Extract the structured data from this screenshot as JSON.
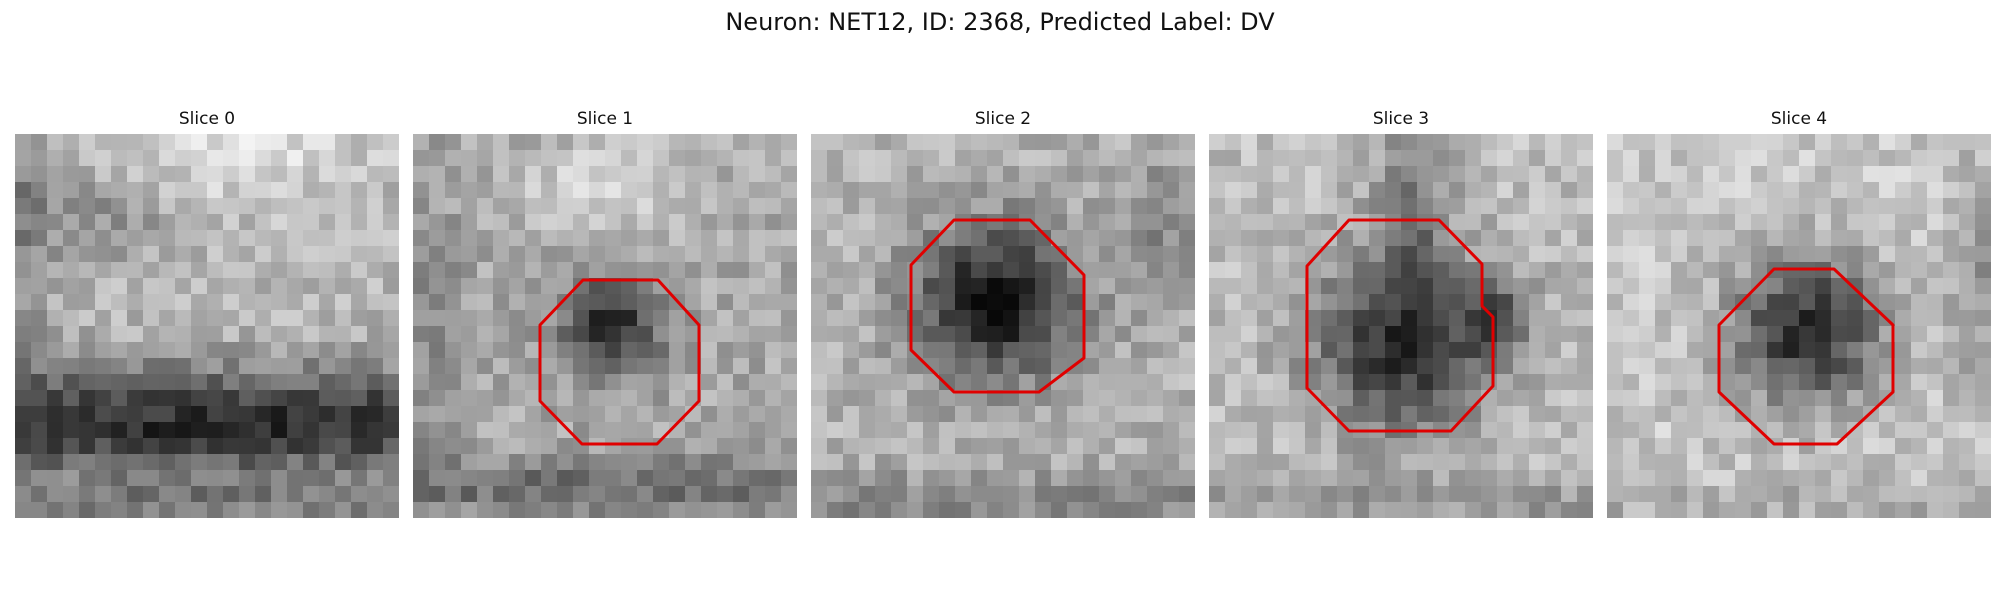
{
  "figure": {
    "title": "Neuron: NET12, ID: 2368, Predicted Label: DV"
  },
  "colors": {
    "outline": "#e00000",
    "background": "#ffffff"
  },
  "panels": [
    {
      "title": "Slice 0",
      "has_outline": false
    },
    {
      "title": "Slice 1",
      "has_outline": true
    },
    {
      "title": "Slice 2",
      "has_outline": true
    },
    {
      "title": "Slice 3",
      "has_outline": true
    },
    {
      "title": "Slice 4",
      "has_outline": true
    }
  ]
}
